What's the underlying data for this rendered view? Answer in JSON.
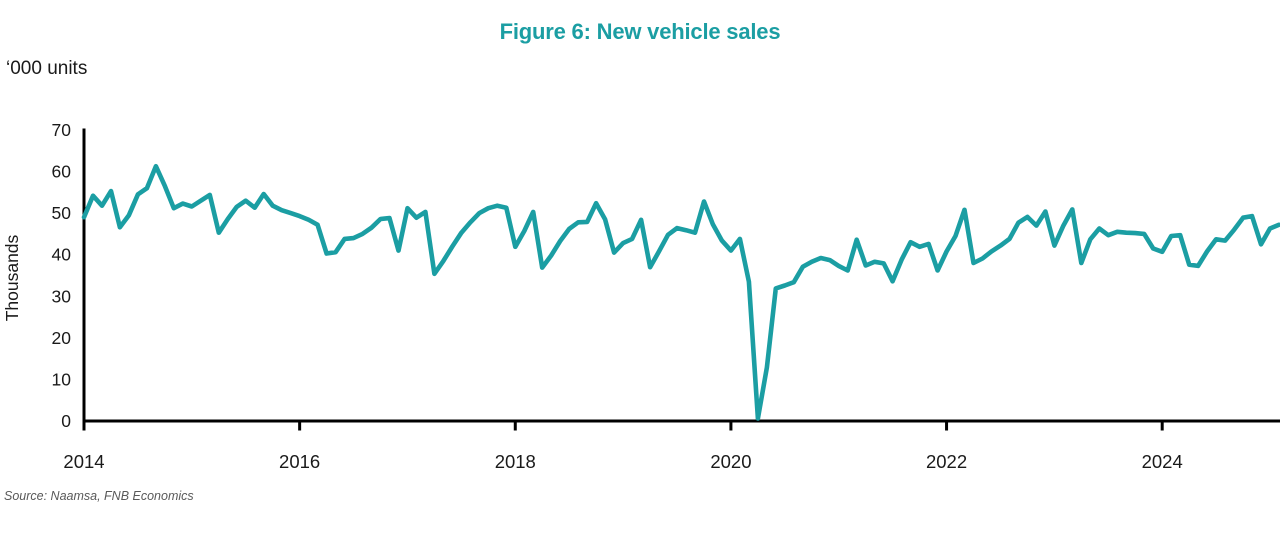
{
  "title": "Figure 6: New vehicle sales",
  "units_label": "‘000 units",
  "source": "Source: Naamsa, FNB Economics",
  "colors": {
    "accent_teal": "#1B9EA3",
    "axis_black": "#000000",
    "label_dark": "#1a1a1a",
    "source_gray": "#595959"
  },
  "chart_data": {
    "type": "line",
    "title": "Figure 6: New vehicle sales",
    "units_note": "‘000 units",
    "ylabel": "Thousands",
    "xlabel": "",
    "frequency": "monthly",
    "x_start": {
      "year": 2014,
      "month": 1
    },
    "x_end": {
      "year": 2025,
      "month": 2
    },
    "x_tick_labels": [
      "2014",
      "2016",
      "2018",
      "2020",
      "2022",
      "2024"
    ],
    "y_ticks": [
      0,
      10,
      20,
      30,
      40,
      50,
      60,
      70
    ],
    "ylim": [
      0,
      70
    ],
    "grid": false,
    "legend": "none",
    "line_color": "#1B9EA3",
    "line_width": 4.6,
    "series": [
      {
        "name": "New vehicle sales ('000 units)",
        "values": [
          49.0,
          54.2,
          51.8,
          55.3,
          46.6,
          49.5,
          54.5,
          56.0,
          61.3,
          56.5,
          51.2,
          52.3,
          51.6,
          53.0,
          54.4,
          45.3,
          48.6,
          51.5,
          53.0,
          51.3,
          54.6,
          51.8,
          50.7,
          50.0,
          49.3,
          48.4,
          47.2,
          40.3,
          40.6,
          43.8,
          44.0,
          45.0,
          46.5,
          48.6,
          48.8,
          41.0,
          51.2,
          48.9,
          50.3,
          35.4,
          38.5,
          42.0,
          45.3,
          47.8,
          50.0,
          51.2,
          51.8,
          51.3,
          41.9,
          45.7,
          50.3,
          36.9,
          39.8,
          43.3,
          46.2,
          47.8,
          47.9,
          52.4,
          48.5,
          40.5,
          42.8,
          43.8,
          48.4,
          37.0,
          40.8,
          44.8,
          46.4,
          45.9,
          45.3,
          52.8,
          47.3,
          43.4,
          41.0,
          43.8,
          33.5,
          0.6,
          12.9,
          31.9,
          32.6,
          33.4,
          37.1,
          38.3,
          39.2,
          38.7,
          37.3,
          36.2,
          43.6,
          37.4,
          38.3,
          37.9,
          33.6,
          38.8,
          43.0,
          41.9,
          42.6,
          36.2,
          40.8,
          44.5,
          50.8,
          38.0,
          39.1,
          40.8,
          42.2,
          43.8,
          47.7,
          49.1,
          47.0,
          50.4,
          42.2,
          47.0,
          50.9,
          38.0,
          43.7,
          46.3,
          44.7,
          45.5,
          45.3,
          45.2,
          45.0,
          41.5,
          40.7,
          44.5,
          44.7,
          37.6,
          37.3,
          40.8,
          43.7,
          43.4,
          46.0,
          48.9,
          49.3,
          42.5,
          46.3,
          47.2
        ]
      }
    ]
  }
}
